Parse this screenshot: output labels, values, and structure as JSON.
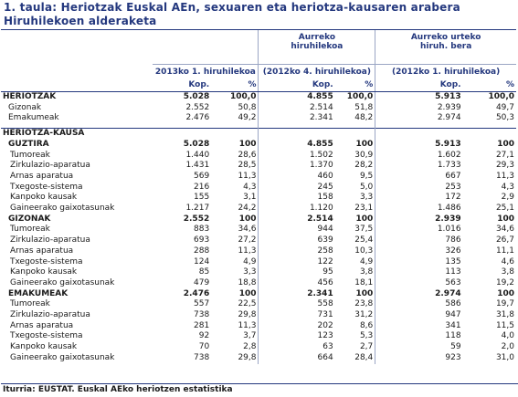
{
  "title": "1. taula: Heriotzak Euskal AEn, sexuaren eta heriotza-kausaren arabera Hiruhilekoen alderaketa",
  "columns": {
    "group1": "2013ko 1. hiruhilekoa",
    "group2_line1": "Aurreko",
    "group2_line2": "hiruhilekoa",
    "group2_paren": "(2012ko 4. hiruhilekoa)",
    "group3_line1": "Aurreko urteko",
    "group3_line2": "hiruh. bera",
    "group3_paren": "(2012ko 1. hiruhilekoa)",
    "kop": "Kop.",
    "pct": "%"
  },
  "rows": [
    {
      "type": "sec",
      "label": "HERIOTZAK",
      "v": [
        "5.028",
        "100,0",
        "4.855",
        "100,0",
        "5.913",
        "100,0"
      ]
    },
    {
      "type": "sub1",
      "label": "Gizonak",
      "v": [
        "2.552",
        "50,8",
        "2.514",
        "51,8",
        "2.939",
        "49,7"
      ]
    },
    {
      "type": "sub1",
      "label": "Emakumeak",
      "v": [
        "2.476",
        "49,2",
        "2.341",
        "48,2",
        "2.974",
        "50,3"
      ]
    },
    {
      "type": "sechead",
      "label": "HERIOTZA-KAUSA",
      "v": [
        "",
        "",
        "",
        "",
        "",
        ""
      ]
    },
    {
      "type": "grp",
      "label": "GUZTIRA",
      "v": [
        "5.028",
        "100",
        "4.855",
        "100",
        "5.913",
        "100"
      ]
    },
    {
      "type": "item",
      "label": "Tumoreak",
      "v": [
        "1.440",
        "28,6",
        "1.502",
        "30,9",
        "1.602",
        "27,1"
      ]
    },
    {
      "type": "item",
      "label": "Zirkulazio-aparatua",
      "v": [
        "1.431",
        "28,5",
        "1.370",
        "28,2",
        "1.733",
        "29,3"
      ]
    },
    {
      "type": "item",
      "label": "Arnas aparatua",
      "v": [
        "569",
        "11,3",
        "460",
        "9,5",
        "667",
        "11,3"
      ]
    },
    {
      "type": "item",
      "label": "Txegoste-sistema",
      "v": [
        "216",
        "4,3",
        "245",
        "5,0",
        "253",
        "4,3"
      ]
    },
    {
      "type": "item",
      "label": "Kanpoko kausak",
      "v": [
        "155",
        "3,1",
        "158",
        "3,3",
        "172",
        "2,9"
      ]
    },
    {
      "type": "item",
      "label": "Gaineerako gaixotasunak",
      "v": [
        "1.217",
        "24,2",
        "1.120",
        "23,1",
        "1.486",
        "25,1"
      ]
    },
    {
      "type": "grp",
      "label": "GIZONAK",
      "v": [
        "2.552",
        "100",
        "2.514",
        "100",
        "2.939",
        "100"
      ]
    },
    {
      "type": "item",
      "label": "Tumoreak",
      "v": [
        "883",
        "34,6",
        "944",
        "37,5",
        "1.016",
        "34,6"
      ]
    },
    {
      "type": "item",
      "label": "Zirkulazio-aparatua",
      "v": [
        "693",
        "27,2",
        "639",
        "25,4",
        "786",
        "26,7"
      ]
    },
    {
      "type": "item",
      "label": "Arnas aparatua",
      "v": [
        "288",
        "11,3",
        "258",
        "10,3",
        "326",
        "11,1"
      ]
    },
    {
      "type": "item",
      "label": "Txegoste-sistema",
      "v": [
        "124",
        "4,9",
        "122",
        "4,9",
        "135",
        "4,6"
      ]
    },
    {
      "type": "item",
      "label": "Kanpoko kausak",
      "v": [
        "85",
        "3,3",
        "95",
        "3,8",
        "113",
        "3,8"
      ]
    },
    {
      "type": "item",
      "label": "Gaineerako gaixotasunak",
      "v": [
        "479",
        "18,8",
        "456",
        "18,1",
        "563",
        "19,2"
      ]
    },
    {
      "type": "grp",
      "label": "EMAKUMEAK",
      "v": [
        "2.476",
        "100",
        "2.341",
        "100",
        "2.974",
        "100"
      ]
    },
    {
      "type": "item",
      "label": "Tumoreak",
      "v": [
        "557",
        "22,5",
        "558",
        "23,8",
        "586",
        "19,7"
      ]
    },
    {
      "type": "item",
      "label": "Zirkulazio-aparatua",
      "v": [
        "738",
        "29,8",
        "731",
        "31,2",
        "947",
        "31,8"
      ]
    },
    {
      "type": "item",
      "label": "Arnas aparatua",
      "v": [
        "281",
        "11,3",
        "202",
        "8,6",
        "341",
        "11,5"
      ]
    },
    {
      "type": "item",
      "label": "Txegoste-sistema",
      "v": [
        "92",
        "3,7",
        "123",
        "5,3",
        "118",
        "4,0"
      ]
    },
    {
      "type": "item",
      "label": "Kanpoko kausak",
      "v": [
        "70",
        "2,8",
        "63",
        "2,7",
        "59",
        "2,0"
      ]
    },
    {
      "type": "item",
      "label": "Gaineerako gaixotasunak",
      "v": [
        "738",
        "29,8",
        "664",
        "28,4",
        "923",
        "31,0"
      ]
    }
  ],
  "footer": "Iturria: EUSTAT. Euskal AEko heriotzen estatistika"
}
